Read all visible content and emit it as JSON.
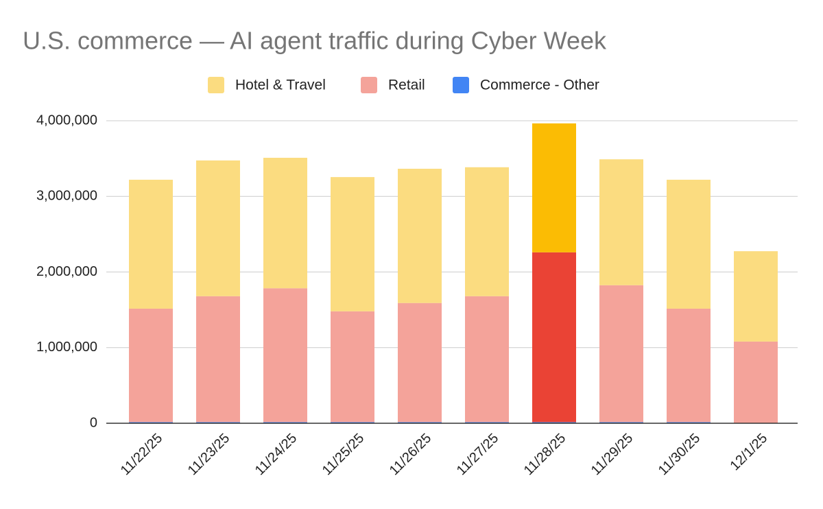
{
  "chart_data": {
    "type": "stacked_bar",
    "title": "U.S. commerce — AI agent traffic during Cyber Week",
    "categories": [
      "11/22/25",
      "11/23/25",
      "11/24/25",
      "11/25/25",
      "11/26/25",
      "11/27/25",
      "11/28/25",
      "11/29/25",
      "11/30/25",
      "12/1/25"
    ],
    "series": [
      {
        "name": "Commerce - Other",
        "color": "#4285f4",
        "highlight_color": "#4285f4",
        "values": [
          15000,
          15000,
          15000,
          15000,
          15000,
          15000,
          15000,
          15000,
          15000,
          0
        ]
      },
      {
        "name": "Retail",
        "color": "#f4a39a",
        "highlight_color": "#ea4335",
        "values": [
          1500000,
          1665000,
          1770000,
          1465000,
          1575000,
          1665000,
          2245000,
          1810000,
          1500000,
          1080000
        ]
      },
      {
        "name": "Hotel & Travel",
        "color": "#fbdc80",
        "highlight_color": "#fbbc04",
        "values": [
          1705000,
          1795000,
          1725000,
          1775000,
          1775000,
          1705000,
          1705000,
          1665000,
          1705000,
          1195000
        ]
      }
    ],
    "legend_order": [
      2,
      1,
      0
    ],
    "highlight_category": "11/28/25",
    "ylim": [
      0,
      4000000
    ],
    "yticks": [
      0,
      {
        "value": 1000000,
        "label": "1,000,000"
      },
      {
        "value": 2000000,
        "label": "2,000,000"
      },
      {
        "value": 3000000,
        "label": "3,000,000"
      },
      {
        "value": 4000000,
        "label": "4,000,000"
      }
    ],
    "grid": true,
    "legend": "top"
  }
}
